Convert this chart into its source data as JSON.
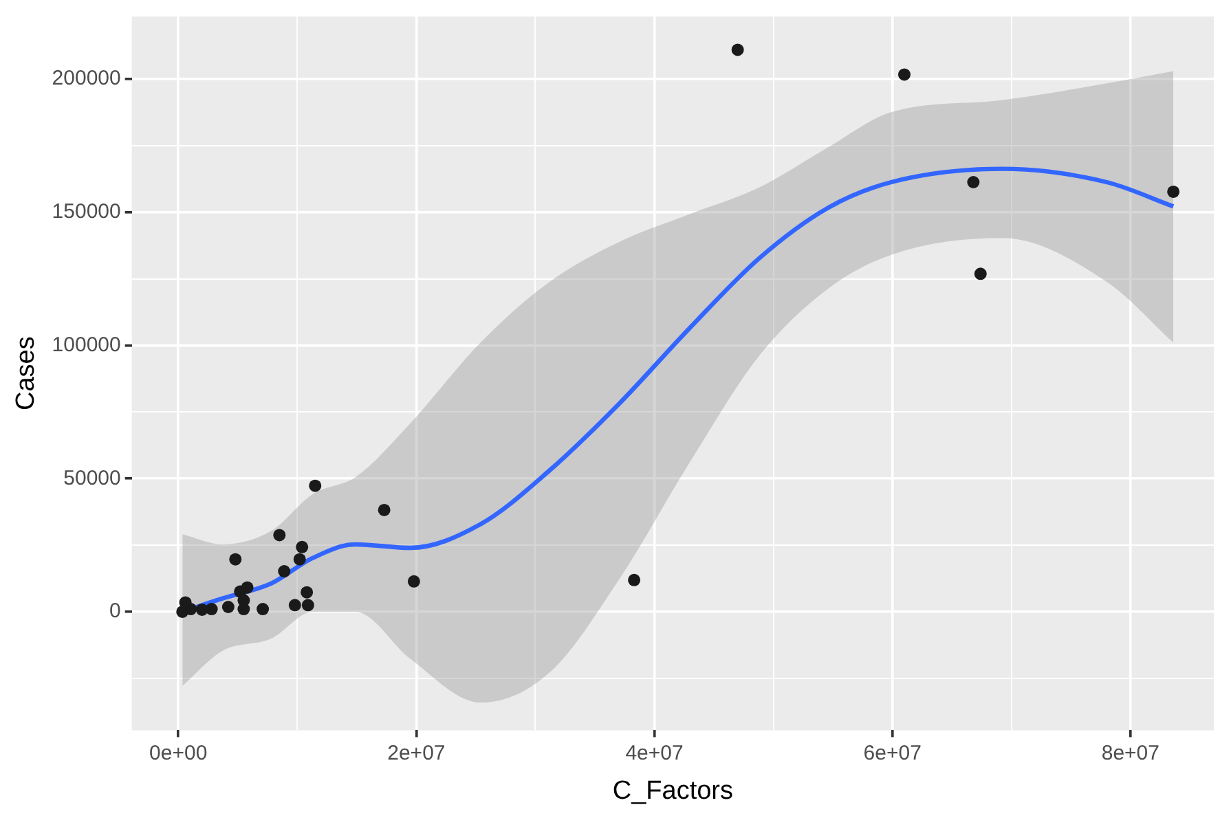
{
  "chart_data": {
    "type": "scatter",
    "xlabel": "C_Factors",
    "ylabel": "Cases",
    "xlim": [
      -3900000,
      87000000
    ],
    "ylim": [
      -44500,
      223500
    ],
    "xticks": [
      {
        "value": 0,
        "label": "0e+00"
      },
      {
        "value": 10000000,
        "label": null
      },
      {
        "value": 20000000,
        "label": "2e+07"
      },
      {
        "value": 30000000,
        "label": null
      },
      {
        "value": 40000000,
        "label": "4e+07"
      },
      {
        "value": 50000000,
        "label": null
      },
      {
        "value": 60000000,
        "label": "6e+07"
      },
      {
        "value": 70000000,
        "label": null
      },
      {
        "value": 80000000,
        "label": "8e+07"
      }
    ],
    "yticks": [
      {
        "value": -25000,
        "label": null
      },
      0,
      {
        "value": 25000,
        "label": null
      },
      50000,
      {
        "value": 75000,
        "label": null
      },
      100000,
      {
        "value": 125000,
        "label": null
      },
      150000,
      {
        "value": 175000,
        "label": null
      },
      200000
    ],
    "grid": true,
    "legend": false,
    "marker": "circle",
    "series": [
      {
        "color": "#1a1a1a",
        "x": [
          47000000,
          61000000,
          66800000,
          83600000,
          67400000,
          38300000,
          19800000,
          17300000,
          11500000,
          8500000,
          4800000,
          10400000,
          10200000,
          8900000,
          10800000,
          5800000,
          5200000,
          5500000,
          5500000,
          7100000,
          9800000,
          10900000,
          4200000,
          2800000,
          2000000,
          1050000,
          600000,
          350000
        ],
        "values": [
          211000,
          201700,
          161300,
          157700,
          126900,
          11900,
          11400,
          38200,
          47300,
          28800,
          19700,
          24300,
          19700,
          15200,
          7300,
          9100,
          7600,
          4300,
          1000,
          1000,
          2500,
          2500,
          1800,
          1000,
          800,
          1000,
          3500,
          0
        ]
      },
      {
        "type": "line",
        "color": "#3366ff",
        "marker": "none",
        "x": [
          350000,
          3700000,
          7800000,
          11300000,
          14900000,
          19500000,
          25400000,
          31200000,
          37100000,
          42900000,
          48800000,
          54600000,
          59900000,
          69200000,
          78000000,
          83600000
        ],
        "values": [
          0,
          5000,
          10600,
          20200,
          25300,
          24000,
          32900,
          53100,
          78400,
          106200,
          132700,
          151700,
          161300,
          166300,
          161300,
          152200
        ],
        "upper": [
          29100,
          25300,
          30300,
          44200,
          50600,
          70800,
          101100,
          123900,
          139000,
          149200,
          159300,
          174400,
          187600,
          192100,
          198400,
          203000
        ],
        "lower": [
          -27800,
          -14700,
          -10100,
          0,
          0,
          -17700,
          -34100,
          -22800,
          12600,
          55600,
          96100,
          121300,
          134000,
          140300,
          123900,
          101100
        ]
      }
    ]
  }
}
